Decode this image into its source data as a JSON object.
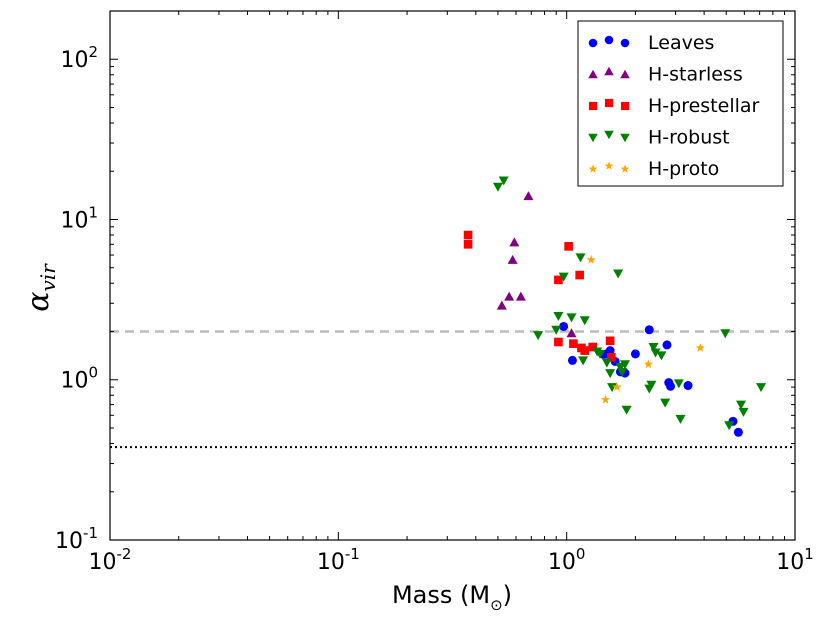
{
  "chart_data": {
    "type": "scatter",
    "xscale": "log",
    "yscale": "log",
    "xlim": [
      0.01,
      10
    ],
    "ylim": [
      0.1,
      200
    ],
    "xlabel": "Mass (M",
    "xlabel_sub": "⊙",
    "xlabel_close": ")",
    "ylabel": "α",
    "ylabel_sub": "vir",
    "x_ticks": [
      {
        "value": 0.01,
        "base": "10",
        "exp": "-2"
      },
      {
        "value": 0.1,
        "base": "10",
        "exp": "-1"
      },
      {
        "value": 1,
        "base": "10",
        "exp": "0"
      },
      {
        "value": 10,
        "base": "10",
        "exp": "1"
      }
    ],
    "y_ticks": [
      {
        "value": 0.1,
        "base": "10",
        "exp": "-1"
      },
      {
        "value": 1,
        "base": "10",
        "exp": "0"
      },
      {
        "value": 10,
        "base": "10",
        "exp": "1"
      },
      {
        "value": 100,
        "base": "10",
        "exp": "2"
      }
    ],
    "reference_lines": [
      {
        "y": 2.0,
        "style": "dashed",
        "color": "#bbbbbb"
      },
      {
        "y": 0.38,
        "style": "dotted",
        "color": "#000000"
      }
    ],
    "legend_position": "top-right",
    "series": [
      {
        "name": "Leaves",
        "marker": "circle",
        "color": "#0000ff",
        "points": [
          [
            0.97,
            2.15
          ],
          [
            1.06,
            1.32
          ],
          [
            1.5,
            1.45
          ],
          [
            1.55,
            1.52
          ],
          [
            1.63,
            1.3
          ],
          [
            1.72,
            1.12
          ],
          [
            1.8,
            1.1
          ],
          [
            2.0,
            1.45
          ],
          [
            2.3,
            2.05
          ],
          [
            2.75,
            1.65
          ],
          [
            2.8,
            0.96
          ],
          [
            2.85,
            0.91
          ],
          [
            3.4,
            0.92
          ],
          [
            5.35,
            0.55
          ],
          [
            5.65,
            0.47
          ],
          [
            1.45,
            1.44
          ]
        ]
      },
      {
        "name": "H-starless",
        "marker": "triangle-up",
        "color": "#800080",
        "points": [
          [
            0.52,
            2.9
          ],
          [
            0.56,
            3.3
          ],
          [
            0.58,
            5.6
          ],
          [
            0.59,
            7.2
          ],
          [
            0.63,
            3.3
          ],
          [
            0.68,
            14.0
          ],
          [
            1.05,
            1.95
          ]
        ]
      },
      {
        "name": "H-prestellar",
        "marker": "square",
        "color": "#ff0000",
        "points": [
          [
            0.37,
            8.0
          ],
          [
            0.37,
            7.0
          ],
          [
            0.92,
            4.2
          ],
          [
            0.92,
            1.72
          ],
          [
            1.02,
            6.8
          ],
          [
            1.07,
            1.68
          ],
          [
            1.14,
            4.5
          ],
          [
            1.16,
            1.58
          ],
          [
            1.2,
            1.52
          ],
          [
            1.3,
            1.6
          ],
          [
            1.55,
            1.75
          ],
          [
            1.57,
            1.38
          ]
        ]
      },
      {
        "name": "H-robust",
        "marker": "triangle-down",
        "color": "#008000",
        "points": [
          [
            0.5,
            16.0
          ],
          [
            0.53,
            17.5
          ],
          [
            0.75,
            1.9
          ],
          [
            0.9,
            2.05
          ],
          [
            0.92,
            2.5
          ],
          [
            0.97,
            4.4
          ],
          [
            1.05,
            2.45
          ],
          [
            1.15,
            5.8
          ],
          [
            1.18,
            1.32
          ],
          [
            1.2,
            2.35
          ],
          [
            1.36,
            1.5
          ],
          [
            1.4,
            1.45
          ],
          [
            1.5,
            1.28
          ],
          [
            1.55,
            1.1
          ],
          [
            1.58,
            0.9
          ],
          [
            1.68,
            4.6
          ],
          [
            1.72,
            1.2
          ],
          [
            1.75,
            1.12
          ],
          [
            1.8,
            1.25
          ],
          [
            1.83,
            0.65
          ],
          [
            2.35,
            0.93
          ],
          [
            2.4,
            1.6
          ],
          [
            2.45,
            1.48
          ],
          [
            2.6,
            1.42
          ],
          [
            2.7,
            0.72
          ],
          [
            3.1,
            0.95
          ],
          [
            3.15,
            0.57
          ],
          [
            4.95,
            1.95
          ],
          [
            5.15,
            0.52
          ],
          [
            5.8,
            0.7
          ],
          [
            5.95,
            0.63
          ],
          [
            7.1,
            0.9
          ],
          [
            2.3,
            0.88
          ]
        ]
      },
      {
        "name": "H-proto",
        "marker": "star",
        "color": "#ffa500",
        "points": [
          [
            1.28,
            5.6
          ],
          [
            1.48,
            0.75
          ],
          [
            1.66,
            0.9
          ],
          [
            2.28,
            1.25
          ],
          [
            3.85,
            1.58
          ]
        ]
      }
    ]
  }
}
